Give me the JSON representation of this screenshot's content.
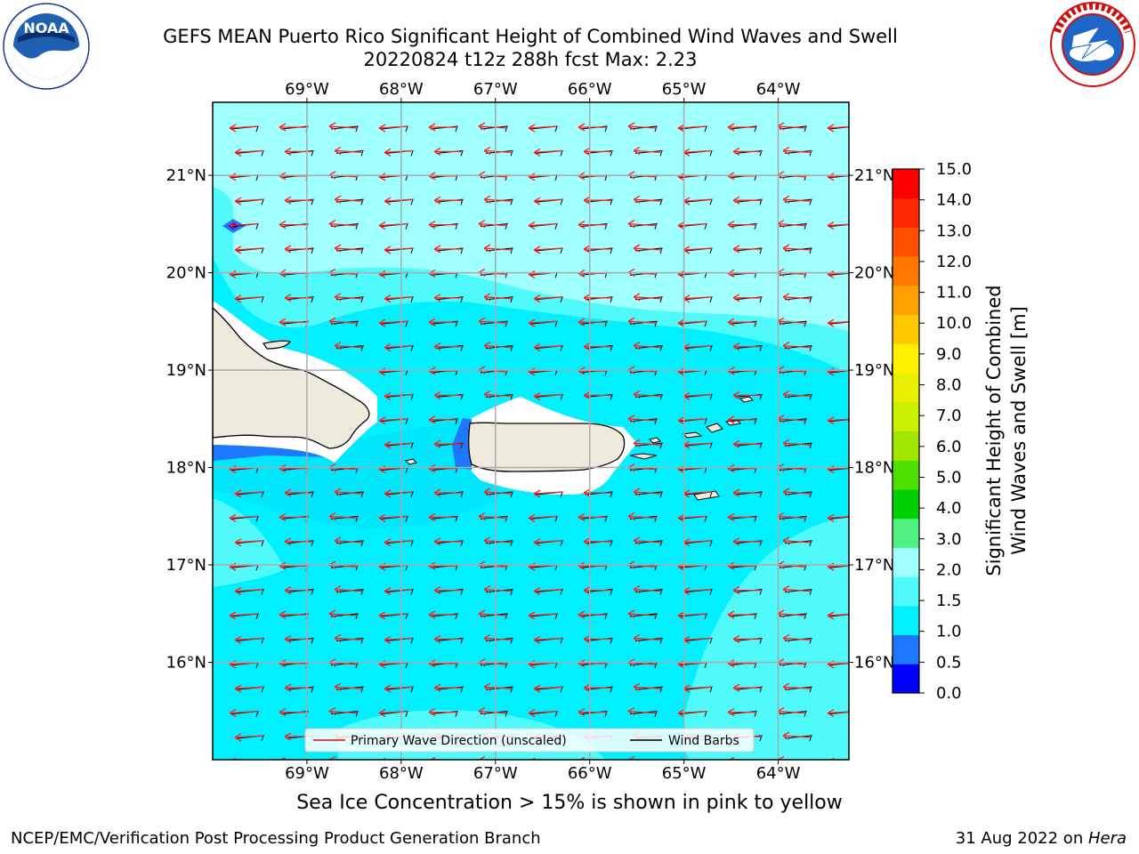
{
  "header": {
    "title_line1": "GEFS MEAN Puerto Rico Significant Height of Combined Wind Waves and Swell",
    "title_line2": "20220824 t12z 288h fcst   Max: 2.23"
  },
  "logos": {
    "left": {
      "name": "NOAA",
      "text": "NOAA",
      "ring_text": "NATIONAL OCEANIC AND ATMOSPHERIC ADMINISTRATION · U.S. DEPARTMENT OF COMMERCE"
    },
    "right": {
      "name": "National Weather Service",
      "ring_text": "NATIONAL WEATHER SERVICE"
    }
  },
  "map": {
    "lon_labels": [
      "69°W",
      "68°W",
      "67°W",
      "66°W",
      "65°W",
      "64°W"
    ],
    "lat_labels": [
      "21°N",
      "20°N",
      "19°N",
      "18°N",
      "17°N",
      "16°N"
    ],
    "lon_values": [
      -69,
      -68,
      -67,
      -66,
      -65,
      -64
    ],
    "lat_values": [
      21,
      20,
      19,
      18,
      17,
      16
    ],
    "lon_range": [
      -70.0,
      -63.25
    ],
    "lat_range": [
      15.0,
      21.75
    ],
    "grid": true,
    "land_color": "#efebdc",
    "sea_colors": {
      "0.0-0.5": "#0000ff",
      "0.5-1.0": "#1e78ff",
      "1.0-1.5": "#00f0ff",
      "1.5-2.0": "#50fafa",
      "2.0-3.0": "#a0ffff"
    },
    "arrow_color": "#ff0000",
    "barb_color": "#000000",
    "wave_direction": "westward"
  },
  "legend": {
    "items": [
      {
        "label": "Primary Wave Direction (unscaled)",
        "color": "#ff0000"
      },
      {
        "label": "Wind Barbs",
        "color": "#000000"
      }
    ],
    "placement": "lower-center"
  },
  "colorbar": {
    "ticks": [
      "15.0",
      "14.0",
      "13.0",
      "12.0",
      "11.0",
      "10.0",
      "9.0",
      "8.0",
      "7.0",
      "6.0",
      "5.0",
      "4.0",
      "3.0",
      "2.0",
      "1.5",
      "1.0",
      "0.5",
      "0.0"
    ],
    "colors": [
      "#0000ff",
      "#1e78ff",
      "#00f0ff",
      "#50fafa",
      "#a0ffff",
      "#50f080",
      "#00d000",
      "#50e000",
      "#a0e600",
      "#c8f000",
      "#e6f000",
      "#fff000",
      "#ffc800",
      "#ffa000",
      "#ff7800",
      "#ff5000",
      "#ff2800",
      "#ff0000"
    ],
    "label_line1": "Significant Height of Combined",
    "label_line2": "Wind Waves and Swell [m]"
  },
  "subtitle": "Sea Ice Concentration > 15% is shown in pink to yellow",
  "footer": {
    "left": "NCEP/EMC/Verification Post Processing Product Generation Branch",
    "right_prefix": "31 Aug 2022 on ",
    "right_host": "Hera"
  }
}
